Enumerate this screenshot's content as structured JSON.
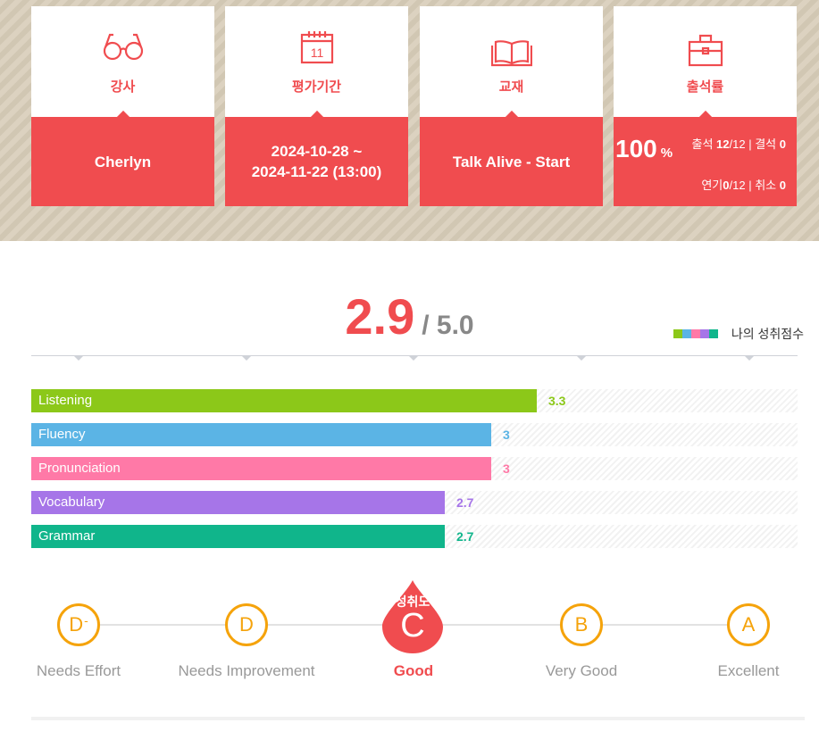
{
  "cards": {
    "teacher": {
      "title": "강사",
      "value": "Cherlyn",
      "icon": "glasses-icon"
    },
    "period": {
      "title": "평가기간",
      "line1": "2024-10-28 ~",
      "line2": "2024-11-22 (13:00)",
      "icon": "calendar-icon",
      "calendar_day": "11"
    },
    "textbook": {
      "title": "교재",
      "value": "Talk Alive - Start",
      "icon": "book-icon"
    },
    "attendance": {
      "title": "출석률",
      "icon": "briefcase-icon",
      "percent": "100",
      "percent_unit": "%",
      "attend_label": "출석",
      "attend_value": "12",
      "attend_total": "/12",
      "absent_label": "결석",
      "absent_value": "0",
      "postpone_label": "연기",
      "postpone_value": "0",
      "postpone_total": "/12",
      "cancel_label": "취소",
      "cancel_value": "0",
      "separator": "|"
    }
  },
  "score": {
    "value": "2.9",
    "max": "/ 5.0"
  },
  "legend": {
    "label": "나의 성취점수",
    "colors": [
      "#8cc819",
      "#5bb4e5",
      "#ff79a7",
      "#a675e8",
      "#10b58b"
    ]
  },
  "chart_data": {
    "type": "bar",
    "orientation": "horizontal",
    "xlim": [
      0,
      5
    ],
    "categories": [
      "Listening",
      "Fluency",
      "Pronunciation",
      "Vocabulary",
      "Grammar"
    ],
    "values": [
      3.3,
      3,
      3,
      2.7,
      2.7
    ],
    "value_labels": [
      "3.3",
      "3",
      "3",
      "2.7",
      "2.7"
    ],
    "colors": [
      "#8cc819",
      "#5bb4e5",
      "#ff79a7",
      "#a675e8",
      "#10b58b"
    ]
  },
  "grades": [
    {
      "letter": "D",
      "sup": "-",
      "label": "Needs Effort",
      "active": false
    },
    {
      "letter": "D",
      "sup": "",
      "label": "Needs Improvement",
      "active": false
    },
    {
      "letter": "C",
      "sup": "",
      "label": "Good",
      "active": true,
      "caption": "성취도"
    },
    {
      "letter": "B",
      "sup": "",
      "label": "Very Good",
      "active": false
    },
    {
      "letter": "A",
      "sup": "",
      "label": "Excellent",
      "active": false
    }
  ],
  "colors": {
    "accent": "#f04c4f",
    "grade_ring": "#f5a30b",
    "banner_bg": "#d8cdb9"
  }
}
